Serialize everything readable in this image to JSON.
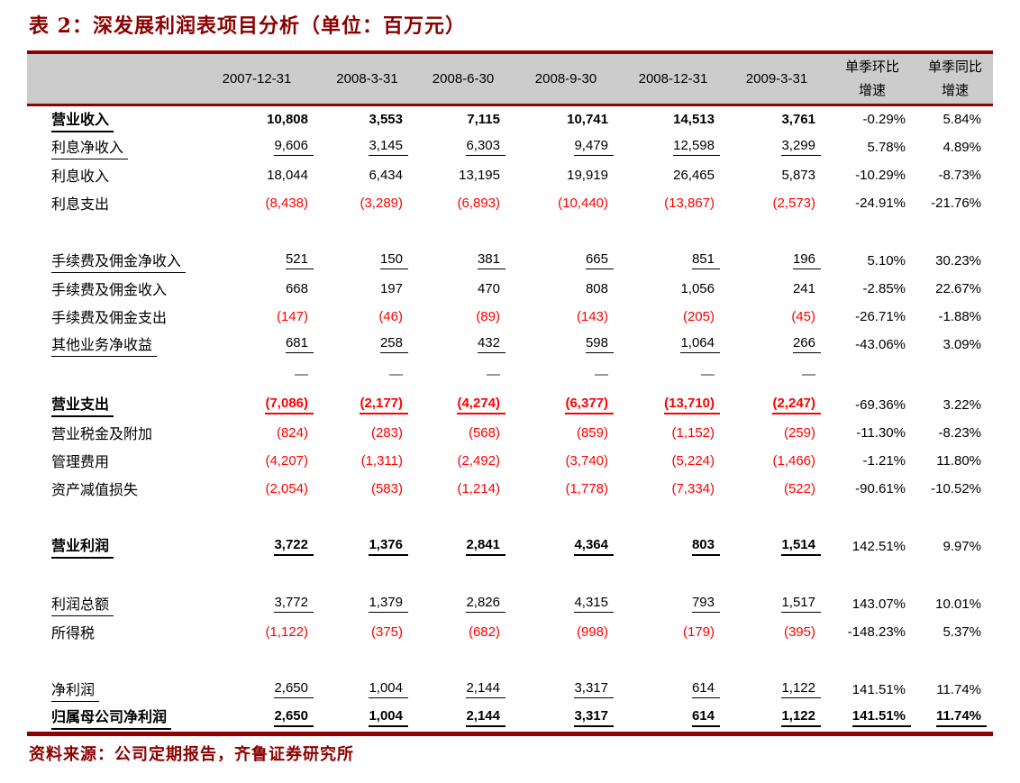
{
  "page": {
    "title": "表 2：深发展利润表项目分析（单位：百万元）",
    "source_note": "资料来源：公司定期报告，齐鲁证券研究所"
  },
  "colors": {
    "accent_dark_red": "#8B0000",
    "negative_red": "#FF0000",
    "header_gray": "#CCCCCC"
  },
  "table": {
    "date_columns": [
      "2007-12-31",
      "2008-3-31",
      "2008-6-30",
      "2008-9-30",
      "2008-12-31",
      "2009-3-31"
    ],
    "growth_columns": [
      {
        "title": "单季环比",
        "subtitle": "增速"
      },
      {
        "title": "单季同比",
        "subtitle": "增速"
      }
    ],
    "rows": [
      {
        "label": "营业收入",
        "values": [
          "10,808",
          "3,553",
          "7,115",
          "10,741",
          "14,513",
          "3,761"
        ],
        "qoq": "-0.29%",
        "yoy": "5.84%",
        "fmt": {
          "label": "bu",
          "values": "b",
          "growth": ""
        }
      },
      {
        "label": "利息净收入",
        "values": [
          "9,606",
          "3,145",
          "6,303",
          "9,479",
          "12,598",
          "3,299"
        ],
        "qoq": "5.78%",
        "yoy": "4.89%",
        "fmt": {
          "label": "u",
          "values": "u",
          "growth": ""
        }
      },
      {
        "label": "利息收入",
        "values": [
          "18,044",
          "6,434",
          "13,195",
          "19,919",
          "26,465",
          "5,873"
        ],
        "qoq": "-10.29%",
        "yoy": "-8.73%",
        "fmt": {
          "label": "",
          "values": "",
          "growth": ""
        }
      },
      {
        "label": "利息支出",
        "values": [
          "(8,438)",
          "(3,289)",
          "(6,893)",
          "(10,440)",
          "(13,867)",
          "(2,573)"
        ],
        "qoq": "-24.91%",
        "yoy": "-21.76%",
        "fmt": {
          "label": "",
          "values": "r",
          "growth": ""
        }
      },
      {
        "spacer": true
      },
      {
        "label": "手续费及佣金净收入",
        "values": [
          "521",
          "150",
          "381",
          "665",
          "851",
          "196"
        ],
        "qoq": "5.10%",
        "yoy": "30.23%",
        "fmt": {
          "label": "u",
          "values": "u",
          "growth": ""
        }
      },
      {
        "label": "手续费及佣金收入",
        "values": [
          "668",
          "197",
          "470",
          "808",
          "1,056",
          "241"
        ],
        "qoq": "-2.85%",
        "yoy": "22.67%",
        "fmt": {
          "label": "",
          "values": "",
          "growth": ""
        }
      },
      {
        "label": "手续费及佣金支出",
        "values": [
          "(147)",
          "(46)",
          "(89)",
          "(143)",
          "(205)",
          "(45)"
        ],
        "qoq": "-26.71%",
        "yoy": "-1.88%",
        "fmt": {
          "label": "",
          "values": "r",
          "growth": ""
        }
      },
      {
        "label": "其他业务净收益",
        "values": [
          "681",
          "258",
          "432",
          "598",
          "1,064",
          "266"
        ],
        "qoq": "-43.06%",
        "yoy": "3.09%",
        "fmt": {
          "label": "u",
          "values": "u",
          "growth": ""
        }
      },
      {
        "dash": true,
        "dash_char": "—"
      },
      {
        "label": "营业支出",
        "values": [
          "(7,086)",
          "(2,177)",
          "(4,274)",
          "(6,377)",
          "(13,710)",
          "(2,247)"
        ],
        "qoq": "-69.36%",
        "yoy": "3.22%",
        "fmt": {
          "label": "bu",
          "values": "rbu",
          "growth": ""
        }
      },
      {
        "label": "营业税金及附加",
        "values": [
          "(824)",
          "(283)",
          "(568)",
          "(859)",
          "(1,152)",
          "(259)"
        ],
        "qoq": "-11.30%",
        "yoy": "-8.23%",
        "fmt": {
          "label": "",
          "values": "r",
          "growth": ""
        }
      },
      {
        "label": "管理费用",
        "values": [
          "(4,207)",
          "(1,311)",
          "(2,492)",
          "(3,740)",
          "(5,224)",
          "(1,466)"
        ],
        "qoq": "-1.21%",
        "yoy": "11.80%",
        "fmt": {
          "label": "",
          "values": "r",
          "growth": ""
        }
      },
      {
        "label": "资产减值损失",
        "values": [
          "(2,054)",
          "(583)",
          "(1,214)",
          "(1,778)",
          "(7,334)",
          "(522)"
        ],
        "qoq": "-90.61%",
        "yoy": "-10.52%",
        "fmt": {
          "label": "",
          "values": "r",
          "growth": ""
        }
      },
      {
        "spacer": true
      },
      {
        "label": "营业利润",
        "values": [
          "3,722",
          "1,376",
          "2,841",
          "4,364",
          "803",
          "1,514"
        ],
        "qoq": "142.51%",
        "yoy": "9.97%",
        "fmt": {
          "label": "bu",
          "values": "bu",
          "growth": ""
        }
      },
      {
        "spacer": true
      },
      {
        "label": "利润总额",
        "values": [
          "3,772",
          "1,379",
          "2,826",
          "4,315",
          "793",
          "1,517"
        ],
        "qoq": "143.07%",
        "yoy": "10.01%",
        "fmt": {
          "label": "u",
          "values": "u",
          "growth": ""
        }
      },
      {
        "label": "所得税",
        "values": [
          "(1,122)",
          "(375)",
          "(682)",
          "(998)",
          "(179)",
          "(395)"
        ],
        "qoq": "-148.23%",
        "yoy": "5.37%",
        "fmt": {
          "label": "",
          "values": "r",
          "growth": ""
        }
      },
      {
        "spacer": true
      },
      {
        "label": "净利润",
        "values": [
          "2,650",
          "1,004",
          "2,144",
          "3,317",
          "614",
          "1,122"
        ],
        "qoq": "141.51%",
        "yoy": "11.74%",
        "fmt": {
          "label": "u",
          "values": "u",
          "growth": ""
        }
      },
      {
        "label": "归属母公司净利润",
        "values": [
          "2,650",
          "1,004",
          "2,144",
          "3,317",
          "614",
          "1,122"
        ],
        "qoq": "141.51%",
        "yoy": "11.74%",
        "fmt": {
          "label": "bu",
          "values": "bu",
          "growth": "bu"
        }
      }
    ]
  }
}
